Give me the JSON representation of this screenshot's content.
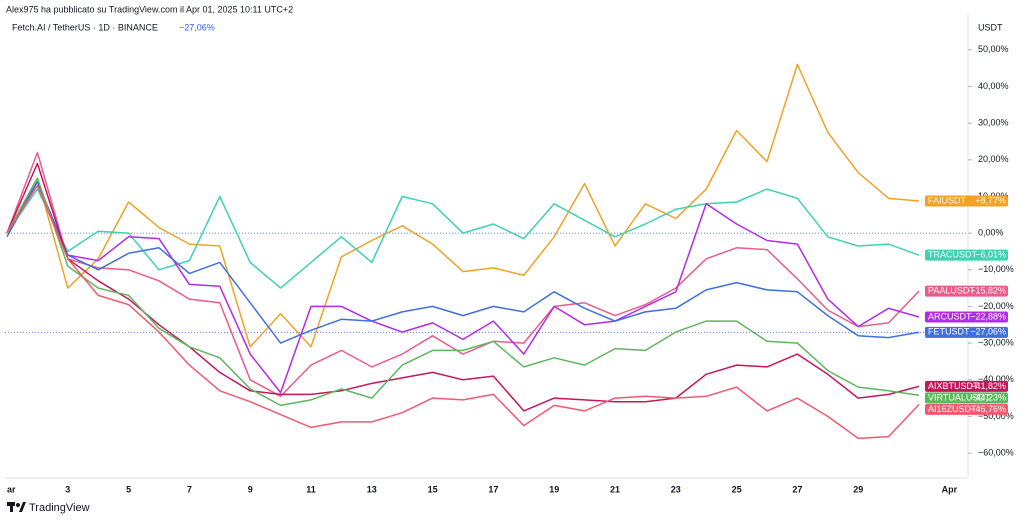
{
  "header": {
    "author_line": "Alex975 ha pubblicato su TradingView.com il Apr 01, 2025 10:11 UTC+2",
    "symbol": "Fetch.AI / TetherUS · 1D · BINANCE",
    "change": "−27,06%"
  },
  "footer": {
    "brand": "TradingView"
  },
  "chart_data": {
    "type": "line",
    "y_label": "USDT",
    "categories": [
      "ar",
      null,
      "3",
      null,
      "5",
      null,
      "7",
      null,
      "9",
      null,
      "11",
      null,
      "13",
      null,
      "15",
      null,
      "17",
      null,
      "19",
      null,
      "21",
      null,
      "23",
      null,
      "25",
      null,
      "27",
      null,
      "29",
      null,
      null,
      "Apr"
    ],
    "ylim": [
      -66.8,
      59.5
    ],
    "yticks": [
      {
        "value": 50,
        "label": "50,00%"
      },
      {
        "value": 40,
        "label": "40,00%"
      },
      {
        "value": 30,
        "label": "30,00%"
      },
      {
        "value": 20,
        "label": "20,00%"
      },
      {
        "value": 10,
        "label": "10,00%"
      },
      {
        "value": 0,
        "label": "0,00%"
      },
      {
        "value": -10,
        "label": "−10,00%"
      },
      {
        "value": -20,
        "label": "−20,00%"
      },
      {
        "value": -30,
        "label": "−30,00%"
      },
      {
        "value": -40,
        "label": "−40,00%"
      },
      {
        "value": -50,
        "label": "−50,00%"
      },
      {
        "value": -60,
        "label": "−60,00%"
      }
    ],
    "grid": false,
    "series": [
      {
        "name": "FAIUSDT",
        "color": "#f0a226",
        "values": [
          0,
          15,
          -15,
          -7,
          8.5,
          1.5,
          -3,
          -3.5,
          -31,
          -22,
          -31,
          -6.5,
          -2,
          2,
          -3,
          -10.5,
          -9.5,
          -11.5,
          -1,
          13.5,
          -3.5,
          8,
          4,
          12,
          28,
          19.5,
          46,
          27.5,
          16.5,
          9.5,
          8.77,
          null
        ],
        "value_labels": [
          null,
          null,
          null,
          null,
          null,
          null,
          null,
          null,
          null,
          null,
          null,
          null,
          null,
          null,
          null,
          null,
          null,
          null,
          null,
          null,
          null,
          null,
          null,
          null,
          null,
          null,
          null,
          null,
          null,
          null,
          "+8,77%",
          null
        ]
      },
      {
        "name": "TRACUSDT",
        "color": "#3fd1b4",
        "values": [
          0,
          12,
          -5,
          0.5,
          0,
          -10,
          -7.5,
          10,
          -8,
          -15,
          -8,
          -1,
          -8,
          10,
          8,
          0,
          2.5,
          -1.5,
          8,
          3.5,
          -1,
          2.5,
          6.5,
          8,
          8.5,
          12,
          9.5,
          -1,
          -3.5,
          -3,
          -6.01,
          null
        ],
        "value_labels": [
          null,
          null,
          null,
          null,
          null,
          null,
          null,
          null,
          null,
          null,
          null,
          null,
          null,
          null,
          null,
          null,
          null,
          null,
          null,
          null,
          null,
          null,
          null,
          null,
          null,
          null,
          null,
          null,
          null,
          null,
          "−6,01%",
          null
        ]
      },
      {
        "name": "PAALUSDT",
        "color": "#ec5b8c",
        "values": [
          0,
          22,
          -7,
          -9.5,
          -10,
          -13,
          -18,
          -19,
          -40,
          -44.5,
          -36,
          -32,
          -36.5,
          -33,
          -28,
          -33,
          -29.5,
          -30,
          -20,
          -19,
          -22.5,
          -19.5,
          -15,
          -7,
          -4,
          -4.5,
          -12.5,
          -21,
          -25.5,
          -24.5,
          -15.82,
          null
        ],
        "value_labels": [
          null,
          null,
          null,
          null,
          null,
          null,
          null,
          null,
          null,
          null,
          null,
          null,
          null,
          null,
          null,
          null,
          null,
          null,
          null,
          null,
          null,
          null,
          null,
          null,
          null,
          null,
          null,
          null,
          null,
          null,
          "−15,82%",
          null
        ]
      },
      {
        "name": "ARCUSDT",
        "color": "#b22be6",
        "values": [
          0,
          14,
          -6,
          -7.5,
          -1,
          -1.5,
          -14,
          -14.5,
          -33,
          -43.5,
          -20,
          -20,
          -24,
          -27,
          -24.5,
          -29,
          -24,
          -33,
          -20,
          -25,
          -24,
          -20,
          -16,
          8,
          2.5,
          -2,
          -3,
          -18,
          -25.5,
          -20.5,
          -22.88,
          null
        ],
        "value_labels": [
          null,
          null,
          null,
          null,
          null,
          null,
          null,
          null,
          null,
          null,
          null,
          null,
          null,
          null,
          null,
          null,
          null,
          null,
          null,
          null,
          null,
          null,
          null,
          null,
          null,
          null,
          null,
          null,
          null,
          null,
          "−22,88%",
          null
        ]
      },
      {
        "name": "FETUSDT",
        "color": "#3f6fe0",
        "values": [
          -1,
          14,
          -6,
          -10,
          -5.5,
          -4,
          -11,
          -8,
          -19,
          -30,
          -26.5,
          -23.5,
          -24,
          -21.5,
          -20,
          -22.5,
          -20,
          -21.5,
          -16,
          -20.5,
          -24,
          -21.5,
          -20.5,
          -15.5,
          -13.5,
          -15.5,
          -16,
          -22.5,
          -28,
          -28.5,
          -27.06,
          null
        ],
        "value_labels": [
          null,
          null,
          null,
          null,
          null,
          null,
          null,
          null,
          null,
          null,
          null,
          null,
          null,
          null,
          null,
          null,
          null,
          null,
          null,
          null,
          null,
          null,
          null,
          null,
          null,
          null,
          null,
          null,
          null,
          null,
          "−27,06%",
          null
        ]
      },
      {
        "name": "AIXBTUSDT",
        "color": "#c2185b",
        "values": [
          0,
          19,
          -7,
          -13,
          -18,
          -25,
          -31,
          -38,
          -43,
          -44,
          -44,
          -43,
          -41,
          -39.5,
          -38,
          -40,
          -39,
          -48.5,
          -45,
          -45.5,
          -46,
          -46,
          -45,
          -38.5,
          -36,
          -36.5,
          -33,
          -38.5,
          -45,
          -44,
          -41.82,
          null
        ],
        "value_labels": [
          null,
          null,
          null,
          null,
          null,
          null,
          null,
          null,
          null,
          null,
          null,
          null,
          null,
          null,
          null,
          null,
          null,
          null,
          null,
          null,
          null,
          null,
          null,
          null,
          null,
          null,
          null,
          null,
          null,
          null,
          "−41,82%",
          null
        ]
      },
      {
        "name": "VIRTUALUSDT",
        "color": "#5cb85c",
        "values": [
          0,
          15,
          -9,
          -15,
          -17,
          -26,
          -31,
          -34,
          -42.5,
          -47,
          -45.5,
          -42.5,
          -45,
          -36,
          -32,
          -32,
          -29.5,
          -36.5,
          -34,
          -36,
          -31.5,
          -32,
          -27,
          -24,
          -24,
          -29.5,
          -30,
          -37.5,
          -42,
          -43,
          -44.23,
          null
        ],
        "value_labels": [
          null,
          null,
          null,
          null,
          null,
          null,
          null,
          null,
          null,
          null,
          null,
          null,
          null,
          null,
          null,
          null,
          null,
          null,
          null,
          null,
          null,
          null,
          null,
          null,
          null,
          null,
          null,
          null,
          null,
          null,
          "−44,23%",
          null
        ]
      },
      {
        "name": "AI16ZUSDT",
        "color": "#ef5a6f",
        "values": [
          0,
          13,
          -7,
          -17,
          -19.5,
          -27,
          -36,
          -43,
          -46,
          -49.5,
          -53,
          -51.5,
          -51.5,
          -49,
          -45,
          -45.5,
          -44,
          -52.5,
          -47,
          -48.5,
          -45,
          -44.5,
          -45,
          -44.5,
          -42,
          -48.5,
          -45,
          -50,
          -56,
          -55.5,
          -46.76,
          null
        ],
        "value_labels": [
          null,
          null,
          null,
          null,
          null,
          null,
          null,
          null,
          null,
          null,
          null,
          null,
          null,
          null,
          null,
          null,
          null,
          null,
          null,
          null,
          null,
          null,
          null,
          null,
          null,
          null,
          null,
          null,
          null,
          null,
          "−46,76%",
          null
        ]
      }
    ]
  }
}
